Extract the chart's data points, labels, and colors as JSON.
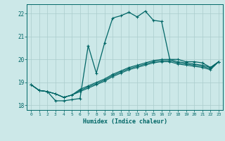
{
  "title": "",
  "xlabel": "Humidex (Indice chaleur)",
  "ylabel": "",
  "background_color": "#cce8e8",
  "grid_color": "#aacccc",
  "line_color": "#006666",
  "xlim": [
    -0.5,
    23.5
  ],
  "ylim": [
    17.8,
    22.4
  ],
  "xticks": [
    0,
    1,
    2,
    3,
    4,
    5,
    6,
    7,
    8,
    9,
    10,
    11,
    12,
    13,
    14,
    15,
    16,
    17,
    18,
    19,
    20,
    21,
    22,
    23
  ],
  "yticks": [
    18,
    19,
    20,
    21,
    22
  ],
  "line1_x": [
    0,
    1,
    2,
    3,
    4,
    5,
    6,
    7,
    8,
    9,
    10,
    11,
    12,
    13,
    14,
    15,
    16,
    17,
    18,
    19,
    20,
    21,
    22,
    23
  ],
  "line1_y": [
    18.9,
    18.65,
    18.6,
    18.2,
    18.2,
    18.25,
    18.3,
    20.6,
    19.4,
    20.7,
    21.8,
    21.9,
    22.05,
    21.85,
    22.1,
    21.7,
    21.65,
    20.0,
    20.0,
    19.9,
    19.9,
    19.85,
    19.65,
    19.9
  ],
  "line2_x": [
    0,
    1,
    2,
    3,
    4,
    5,
    6,
    7,
    8,
    9,
    10,
    11,
    12,
    13,
    14,
    15,
    16,
    17,
    18,
    19,
    20,
    21,
    22,
    23
  ],
  "line2_y": [
    18.9,
    18.65,
    18.6,
    18.5,
    18.35,
    18.45,
    18.6,
    18.75,
    18.9,
    19.05,
    19.25,
    19.4,
    19.55,
    19.65,
    19.75,
    19.85,
    19.9,
    19.9,
    19.8,
    19.75,
    19.7,
    19.65,
    19.55,
    19.9
  ],
  "line3_x": [
    0,
    1,
    2,
    3,
    4,
    5,
    6,
    7,
    8,
    9,
    10,
    11,
    12,
    13,
    14,
    15,
    16,
    17,
    18,
    19,
    20,
    21,
    22,
    23
  ],
  "line3_y": [
    18.9,
    18.65,
    18.6,
    18.5,
    18.35,
    18.45,
    18.65,
    18.8,
    18.95,
    19.1,
    19.3,
    19.45,
    19.6,
    19.7,
    19.8,
    19.9,
    19.95,
    19.95,
    19.85,
    19.8,
    19.75,
    19.7,
    19.6,
    19.9
  ],
  "line4_x": [
    0,
    1,
    2,
    3,
    4,
    5,
    6,
    7,
    8,
    9,
    10,
    11,
    12,
    13,
    14,
    15,
    16,
    17,
    18,
    19,
    20,
    21,
    22,
    23
  ],
  "line4_y": [
    18.9,
    18.65,
    18.6,
    18.5,
    18.35,
    18.45,
    18.7,
    18.85,
    19.0,
    19.15,
    19.35,
    19.5,
    19.65,
    19.75,
    19.85,
    19.95,
    20.0,
    20.0,
    19.9,
    19.85,
    19.8,
    19.75,
    19.65,
    19.9
  ]
}
